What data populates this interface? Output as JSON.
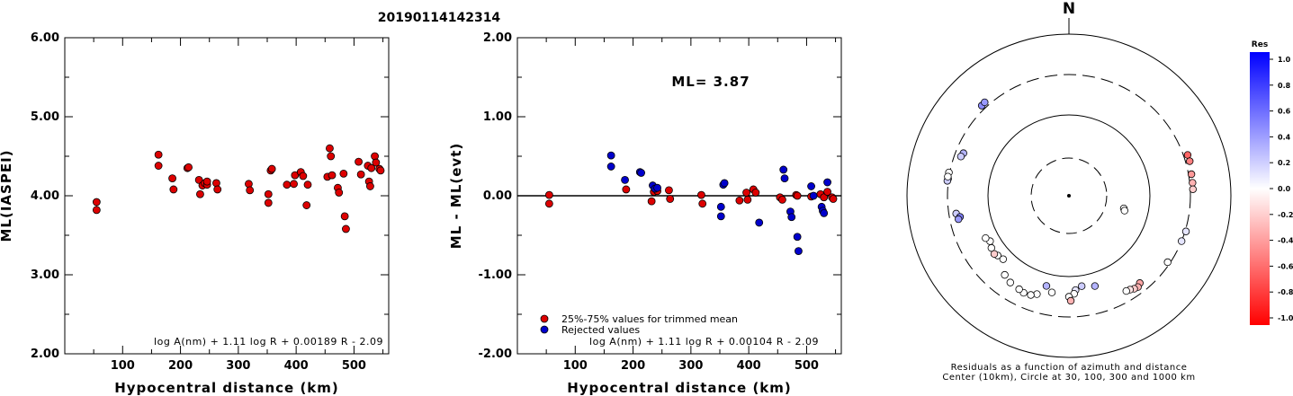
{
  "header": {
    "title": "20190114142314"
  },
  "chart_data": [
    {
      "type": "scatter",
      "xlabel": "Hypocentral distance (km)",
      "ylabel": "ML(IASPEI)",
      "xlim": [
        0,
        560
      ],
      "ylim": [
        2.0,
        6.0
      ],
      "x_ticks": [
        "100",
        "200",
        "300",
        "400",
        "500"
      ],
      "y_ticks": [
        "2.00",
        "3.00",
        "4.00",
        "5.00",
        "6.00"
      ],
      "formula": "log A(nm) + 1.11 log R + 0.00189 R - 2.09",
      "series": [
        {
          "color": "#dd0000",
          "points": [
            [
              55,
              3.92
            ],
            [
              55,
              3.82
            ],
            [
              162,
              4.52
            ],
            [
              162,
              4.38
            ],
            [
              186,
              4.22
            ],
            [
              188,
              4.08
            ],
            [
              212,
              4.35
            ],
            [
              214,
              4.36
            ],
            [
              232,
              4.2
            ],
            [
              234,
              4.02
            ],
            [
              238,
              4.13
            ],
            [
              242,
              4.16
            ],
            [
              246,
              4.14
            ],
            [
              246,
              4.18
            ],
            [
              262,
              4.16
            ],
            [
              264,
              4.08
            ],
            [
              318,
              4.15
            ],
            [
              320,
              4.07
            ],
            [
              352,
              4.02
            ],
            [
              352,
              3.91
            ],
            [
              356,
              4.32
            ],
            [
              358,
              4.34
            ],
            [
              384,
              4.14
            ],
            [
              396,
              4.15
            ],
            [
              398,
              4.26
            ],
            [
              408,
              4.3
            ],
            [
              412,
              4.25
            ],
            [
              418,
              3.88
            ],
            [
              420,
              4.14
            ],
            [
              454,
              4.24
            ],
            [
              458,
              4.6
            ],
            [
              460,
              4.5
            ],
            [
              462,
              4.26
            ],
            [
              472,
              4.1
            ],
            [
              474,
              4.04
            ],
            [
              482,
              4.28
            ],
            [
              484,
              3.74
            ],
            [
              486,
              3.58
            ],
            [
              508,
              4.43
            ],
            [
              512,
              4.27
            ],
            [
              524,
              4.38
            ],
            [
              526,
              4.18
            ],
            [
              528,
              4.12
            ],
            [
              530,
              4.35
            ],
            [
              536,
              4.5
            ],
            [
              538,
              4.42
            ],
            [
              544,
              4.34
            ],
            [
              546,
              4.32
            ]
          ]
        }
      ]
    },
    {
      "type": "scatter",
      "annotation": "ML= 3.87",
      "xlabel": "Hypocentral distance (km)",
      "ylabel": "ML - ML(evt)",
      "xlim": [
        0,
        560
      ],
      "ylim": [
        -2.0,
        2.0
      ],
      "x_ticks": [
        "100",
        "200",
        "300",
        "400",
        "500"
      ],
      "y_ticks": [
        "-2.00",
        "-1.00",
        "0.00",
        "1.00",
        "2.00"
      ],
      "reference_line": 0,
      "formula": "log A(nm) + 1.11 log R + 0.00104 R - 2.09",
      "legend": {
        "placement": "bottom-left",
        "items": [
          {
            "label": "25%-75% values for trimmed mean",
            "color": "#dd0000"
          },
          {
            "label": "Rejected values",
            "color": "#0000cc"
          }
        ]
      },
      "series": [
        {
          "name": "25%-75% values for trimmed mean",
          "color": "#dd0000",
          "points": [
            [
              55,
              0.01
            ],
            [
              55,
              -0.1
            ],
            [
              188,
              0.08
            ],
            [
              232,
              -0.07
            ],
            [
              236,
              0.05
            ],
            [
              242,
              0.06
            ],
            [
              262,
              0.07
            ],
            [
              264,
              -0.04
            ],
            [
              318,
              0.01
            ],
            [
              320,
              -0.1
            ],
            [
              384,
              -0.06
            ],
            [
              396,
              0.04
            ],
            [
              398,
              -0.05
            ],
            [
              408,
              0.08
            ],
            [
              412,
              0.04
            ],
            [
              454,
              -0.02
            ],
            [
              458,
              -0.05
            ],
            [
              482,
              0.01
            ],
            [
              484,
              0.0
            ],
            [
              508,
              -0.01
            ],
            [
              524,
              0.02
            ],
            [
              530,
              -0.02
            ],
            [
              536,
              0.05
            ],
            [
              544,
              -0.02
            ],
            [
              546,
              -0.04
            ]
          ]
        },
        {
          "name": "Rejected values",
          "color": "#0000cc",
          "points": [
            [
              162,
              0.51
            ],
            [
              162,
              0.37
            ],
            [
              186,
              0.2
            ],
            [
              212,
              0.3
            ],
            [
              214,
              0.29
            ],
            [
              234,
              0.13
            ],
            [
              238,
              0.09
            ],
            [
              242,
              0.1
            ],
            [
              352,
              -0.14
            ],
            [
              352,
              -0.26
            ],
            [
              356,
              0.14
            ],
            [
              358,
              0.16
            ],
            [
              418,
              -0.34
            ],
            [
              460,
              0.33
            ],
            [
              462,
              0.22
            ],
            [
              472,
              -0.2
            ],
            [
              474,
              -0.27
            ],
            [
              484,
              -0.52
            ],
            [
              486,
              -0.7
            ],
            [
              508,
              0.12
            ],
            [
              512,
              0.0
            ],
            [
              526,
              -0.14
            ],
            [
              528,
              -0.19
            ],
            [
              530,
              -0.22
            ],
            [
              536,
              0.17
            ]
          ]
        }
      ]
    },
    {
      "type": "scatter",
      "subtype": "polar",
      "north_label": "N",
      "caption": "Residuals as a function of azimuth and distance",
      "caption2": "Center (10km), Circle at 30, 100, 300 and 1000 km",
      "rings_km": [
        30,
        100,
        300,
        1000
      ],
      "colorbar": {
        "title": "Res",
        "ticks": [
          "1.0",
          "0.8",
          "0.6",
          "0.4",
          "0.2",
          "0.0",
          "-0.2",
          "-0.4",
          "-0.6",
          "-0.8",
          "-1.0"
        ],
        "positive_color": "#0000ff",
        "negative_color": "#ff0000"
      },
      "points": [
        {
          "az": 316,
          "dist": 370,
          "res": 0.45
        },
        {
          "az": 318,
          "dist": 378,
          "res": 0.4
        },
        {
          "az": 292,
          "dist": 262,
          "res": 0.3
        },
        {
          "az": 290,
          "dist": 268,
          "res": 0.2
        },
        {
          "az": 278,
          "dist": 310,
          "res": 0.1
        },
        {
          "az": 277,
          "dist": 318,
          "res": 0.2
        },
        {
          "az": 281,
          "dist": 314,
          "res": 0.0
        },
        {
          "az": 279,
          "dist": 320,
          "res": 0.0
        },
        {
          "az": 261,
          "dist": 264,
          "res": 0.2
        },
        {
          "az": 259,
          "dist": 248,
          "res": 0.5
        },
        {
          "az": 258,
          "dist": 258,
          "res": 0.4
        },
        {
          "az": 103,
          "dist": 60,
          "res": 0.0
        },
        {
          "az": 105,
          "dist": 62,
          "res": 0.0
        },
        {
          "az": 71,
          "dist": 370,
          "res": -0.6
        },
        {
          "az": 74,
          "dist": 372,
          "res": -0.5
        },
        {
          "az": 80,
          "dist": 350,
          "res": -0.4
        },
        {
          "az": 84,
          "dist": 348,
          "res": -0.3
        },
        {
          "az": 87,
          "dist": 346,
          "res": -0.2
        },
        {
          "az": 107,
          "dist": 315,
          "res": 0.1
        },
        {
          "az": 112,
          "dist": 300,
          "res": 0.1
        },
        {
          "az": 124,
          "dist": 288,
          "res": 0.0
        },
        {
          "az": 141,
          "dist": 256,
          "res": -0.35
        },
        {
          "az": 143,
          "dist": 266,
          "res": -0.3
        },
        {
          "az": 145,
          "dist": 262,
          "res": -0.2
        },
        {
          "az": 147,
          "dist": 254,
          "res": -0.1
        },
        {
          "az": 149,
          "dist": 250,
          "res": 0.0
        },
        {
          "az": 164,
          "dist": 165,
          "res": 0.3
        },
        {
          "az": 172,
          "dist": 152,
          "res": 0.2
        },
        {
          "az": 176,
          "dist": 168,
          "res": 0.1
        },
        {
          "az": 177,
          "dist": 186,
          "res": 0.0
        },
        {
          "az": 180,
          "dist": 200,
          "res": 0.0
        },
        {
          "az": 179,
          "dist": 220,
          "res": -0.3
        },
        {
          "az": 190,
          "dist": 186,
          "res": 0.0
        },
        {
          "az": 194,
          "dist": 160,
          "res": 0.3
        },
        {
          "az": 198,
          "dist": 212,
          "res": 0.0
        },
        {
          "az": 201,
          "dist": 226,
          "res": 0.0
        },
        {
          "az": 205,
          "dist": 230,
          "res": 0.0
        },
        {
          "az": 208,
          "dist": 224,
          "res": 0.0
        },
        {
          "az": 214,
          "dist": 218,
          "res": 0.0
        },
        {
          "az": 219,
          "dist": 204,
          "res": 0.0
        },
        {
          "az": 226,
          "dist": 152,
          "res": 0.0
        },
        {
          "az": 230,
          "dist": 160,
          "res": 0.0
        },
        {
          "az": 232,
          "dist": 168,
          "res": -0.2
        },
        {
          "az": 236,
          "dist": 162,
          "res": 0.0
        },
        {
          "az": 240,
          "dist": 150,
          "res": 0.0
        },
        {
          "az": 243,
          "dist": 162,
          "res": 0.0
        }
      ]
    }
  ]
}
